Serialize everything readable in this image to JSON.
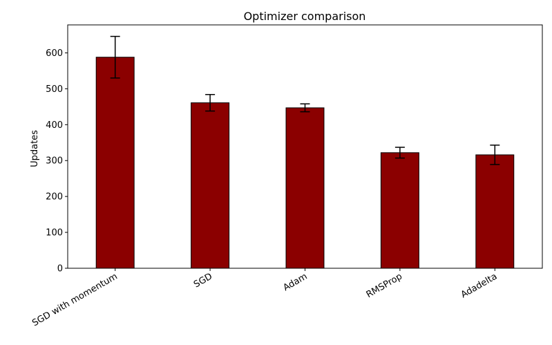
{
  "chart_data": {
    "type": "bar",
    "title": "Optimizer comparison",
    "xlabel": "",
    "ylabel": "Updates",
    "categories": [
      "SGD with momentum",
      "SGD",
      "Adam",
      "RMSProp",
      "Adadelta"
    ],
    "values": [
      588,
      461,
      447,
      322,
      316
    ],
    "errors": [
      58,
      23,
      11,
      15,
      27
    ],
    "ylim": [
      0,
      678
    ],
    "yticks": [
      0,
      100,
      200,
      300,
      400,
      500,
      600
    ],
    "bar_color": "#8b0000",
    "edge_color": "#000000",
    "grid": false
  }
}
